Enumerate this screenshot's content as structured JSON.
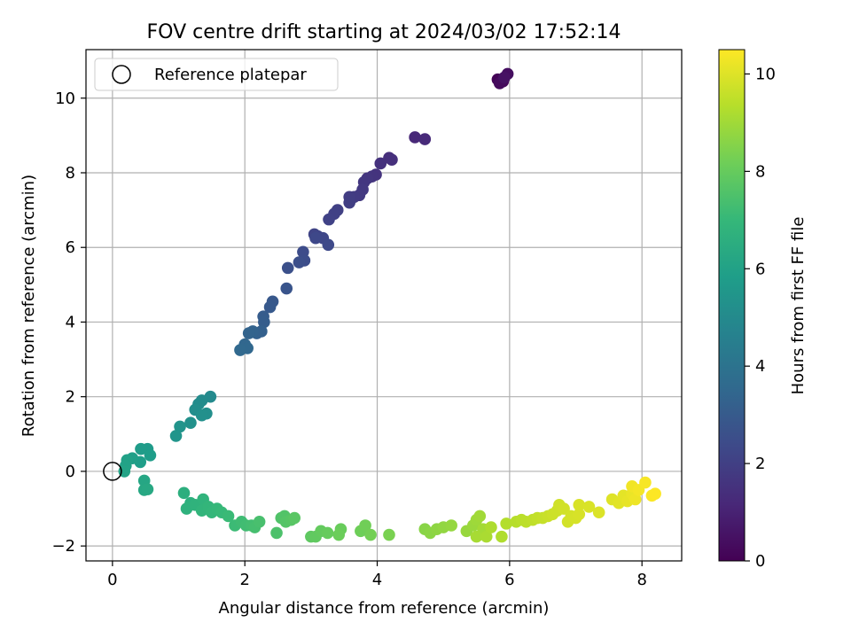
{
  "chart_data": {
    "type": "scatter",
    "title": "FOV centre drift starting at 2024/03/02 17:52:14",
    "xlabel": "Angular distance from reference (arcmin)",
    "ylabel": "Rotation from reference (arcmin)",
    "xlim": [
      -0.4,
      8.6
    ],
    "ylim": [
      -2.4,
      11.3
    ],
    "xticks": [
      0,
      2,
      4,
      6,
      8
    ],
    "yticks": [
      -2,
      0,
      2,
      4,
      6,
      8,
      10
    ],
    "grid": true,
    "legend": {
      "position": "top-left",
      "entries": [
        "Reference platepar"
      ]
    },
    "reference_point": {
      "x": 0,
      "y": 0
    },
    "colorbar": {
      "label": "Hours from first FF file",
      "range": [
        0,
        10.5
      ],
      "ticks": [
        0,
        2,
        4,
        6,
        8,
        10
      ],
      "colormap": [
        "#440154",
        "#482878",
        "#3e4989",
        "#31688e",
        "#26828e",
        "#1f9e89",
        "#35b779",
        "#6ece58",
        "#b5de2b",
        "#fde725"
      ]
    },
    "points": [
      {
        "x": 5.82,
        "y": 10.5,
        "h": 0.1
      },
      {
        "x": 5.9,
        "y": 10.45,
        "h": 0.2
      },
      {
        "x": 5.85,
        "y": 10.4,
        "h": 0.3
      },
      {
        "x": 5.97,
        "y": 10.65,
        "h": 0.4
      },
      {
        "x": 5.92,
        "y": 10.55,
        "h": 0.5
      },
      {
        "x": 4.57,
        "y": 8.95,
        "h": 1.2
      },
      {
        "x": 4.72,
        "y": 8.9,
        "h": 1.25
      },
      {
        "x": 4.18,
        "y": 8.4,
        "h": 1.4
      },
      {
        "x": 4.22,
        "y": 8.35,
        "h": 1.45
      },
      {
        "x": 4.05,
        "y": 8.25,
        "h": 1.5
      },
      {
        "x": 3.98,
        "y": 7.95,
        "h": 1.55
      },
      {
        "x": 3.92,
        "y": 7.9,
        "h": 1.6
      },
      {
        "x": 3.85,
        "y": 7.85,
        "h": 1.65
      },
      {
        "x": 3.8,
        "y": 7.75,
        "h": 1.7
      },
      {
        "x": 3.78,
        "y": 7.55,
        "h": 1.75
      },
      {
        "x": 3.73,
        "y": 7.4,
        "h": 1.8
      },
      {
        "x": 3.65,
        "y": 7.35,
        "h": 1.85
      },
      {
        "x": 3.58,
        "y": 7.35,
        "h": 1.9
      },
      {
        "x": 3.58,
        "y": 7.2,
        "h": 1.95
      },
      {
        "x": 3.4,
        "y": 7.0,
        "h": 2.0
      },
      {
        "x": 3.35,
        "y": 6.9,
        "h": 2.05
      },
      {
        "x": 3.27,
        "y": 6.75,
        "h": 2.1
      },
      {
        "x": 3.05,
        "y": 6.35,
        "h": 2.15
      },
      {
        "x": 3.1,
        "y": 6.3,
        "h": 2.2
      },
      {
        "x": 3.18,
        "y": 6.25,
        "h": 2.25
      },
      {
        "x": 3.07,
        "y": 6.25,
        "h": 2.3
      },
      {
        "x": 3.26,
        "y": 6.07,
        "h": 2.35
      },
      {
        "x": 2.88,
        "y": 5.88,
        "h": 2.45
      },
      {
        "x": 2.9,
        "y": 5.65,
        "h": 2.5
      },
      {
        "x": 2.82,
        "y": 5.6,
        "h": 2.55
      },
      {
        "x": 2.65,
        "y": 5.45,
        "h": 2.6
      },
      {
        "x": 2.63,
        "y": 4.9,
        "h": 2.75
      },
      {
        "x": 2.42,
        "y": 4.55,
        "h": 2.9
      },
      {
        "x": 2.38,
        "y": 4.4,
        "h": 2.95
      },
      {
        "x": 2.28,
        "y": 4.15,
        "h": 3.05
      },
      {
        "x": 2.29,
        "y": 4.0,
        "h": 3.1
      },
      {
        "x": 2.25,
        "y": 3.75,
        "h": 3.2
      },
      {
        "x": 2.18,
        "y": 3.7,
        "h": 3.25
      },
      {
        "x": 2.12,
        "y": 3.75,
        "h": 3.3
      },
      {
        "x": 2.06,
        "y": 3.7,
        "h": 3.35
      },
      {
        "x": 2.0,
        "y": 3.4,
        "h": 3.45
      },
      {
        "x": 2.04,
        "y": 3.3,
        "h": 3.5
      },
      {
        "x": 1.93,
        "y": 3.25,
        "h": 3.55
      },
      {
        "x": 1.48,
        "y": 2.0,
        "h": 5.0
      },
      {
        "x": 1.35,
        "y": 1.9,
        "h": 5.05
      },
      {
        "x": 1.3,
        "y": 1.8,
        "h": 5.1
      },
      {
        "x": 1.25,
        "y": 1.65,
        "h": 5.15
      },
      {
        "x": 1.42,
        "y": 1.55,
        "h": 5.2
      },
      {
        "x": 1.35,
        "y": 1.5,
        "h": 5.25
      },
      {
        "x": 1.18,
        "y": 1.3,
        "h": 5.3
      },
      {
        "x": 1.02,
        "y": 1.2,
        "h": 5.4
      },
      {
        "x": 0.96,
        "y": 0.95,
        "h": 5.45
      },
      {
        "x": 0.53,
        "y": 0.6,
        "h": 5.7
      },
      {
        "x": 0.43,
        "y": 0.6,
        "h": 5.75
      },
      {
        "x": 0.57,
        "y": 0.43,
        "h": 5.8
      },
      {
        "x": 0.42,
        "y": 0.25,
        "h": 5.85
      },
      {
        "x": 0.3,
        "y": 0.35,
        "h": 5.9
      },
      {
        "x": 0.22,
        "y": 0.3,
        "h": 5.95
      },
      {
        "x": 0.2,
        "y": 0.15,
        "h": 6.0
      },
      {
        "x": 0.18,
        "y": 0.0,
        "h": 6.05
      },
      {
        "x": 0.48,
        "y": -0.25,
        "h": 6.2
      },
      {
        "x": 0.48,
        "y": -0.5,
        "h": 6.25
      },
      {
        "x": 0.53,
        "y": -0.48,
        "h": 6.3
      },
      {
        "x": 1.08,
        "y": -0.58,
        "h": 6.6
      },
      {
        "x": 1.18,
        "y": -0.85,
        "h": 6.65
      },
      {
        "x": 1.12,
        "y": -1.0,
        "h": 6.7
      },
      {
        "x": 1.25,
        "y": -0.9,
        "h": 6.75
      },
      {
        "x": 1.37,
        "y": -0.75,
        "h": 6.8
      },
      {
        "x": 1.35,
        "y": -1.05,
        "h": 6.85
      },
      {
        "x": 1.45,
        "y": -0.95,
        "h": 6.9
      },
      {
        "x": 1.5,
        "y": -1.1,
        "h": 6.95
      },
      {
        "x": 1.58,
        "y": -1.0,
        "h": 7.0
      },
      {
        "x": 1.65,
        "y": -1.1,
        "h": 7.05
      },
      {
        "x": 1.75,
        "y": -1.2,
        "h": 7.1
      },
      {
        "x": 1.85,
        "y": -1.45,
        "h": 7.15
      },
      {
        "x": 1.95,
        "y": -1.35,
        "h": 7.2
      },
      {
        "x": 2.02,
        "y": -1.45,
        "h": 7.25
      },
      {
        "x": 2.1,
        "y": -1.45,
        "h": 7.3
      },
      {
        "x": 2.15,
        "y": -1.5,
        "h": 7.35
      },
      {
        "x": 2.22,
        "y": -1.35,
        "h": 7.4
      },
      {
        "x": 2.48,
        "y": -1.65,
        "h": 7.5
      },
      {
        "x": 2.55,
        "y": -1.25,
        "h": 7.55
      },
      {
        "x": 2.6,
        "y": -1.2,
        "h": 7.6
      },
      {
        "x": 2.62,
        "y": -1.35,
        "h": 7.65
      },
      {
        "x": 2.7,
        "y": -1.3,
        "h": 7.7
      },
      {
        "x": 2.75,
        "y": -1.25,
        "h": 7.75
      },
      {
        "x": 3.0,
        "y": -1.75,
        "h": 7.85
      },
      {
        "x": 3.07,
        "y": -1.75,
        "h": 7.9
      },
      {
        "x": 3.15,
        "y": -1.6,
        "h": 7.95
      },
      {
        "x": 3.25,
        "y": -1.65,
        "h": 8.0
      },
      {
        "x": 3.45,
        "y": -1.55,
        "h": 8.05
      },
      {
        "x": 3.42,
        "y": -1.7,
        "h": 8.1
      },
      {
        "x": 3.75,
        "y": -1.6,
        "h": 8.15
      },
      {
        "x": 3.82,
        "y": -1.45,
        "h": 8.2
      },
      {
        "x": 3.9,
        "y": -1.7,
        "h": 8.25
      },
      {
        "x": 4.18,
        "y": -1.7,
        "h": 8.35
      },
      {
        "x": 4.72,
        "y": -1.55,
        "h": 8.6
      },
      {
        "x": 4.8,
        "y": -1.65,
        "h": 8.65
      },
      {
        "x": 4.9,
        "y": -1.55,
        "h": 8.7
      },
      {
        "x": 5.0,
        "y": -1.5,
        "h": 8.75
      },
      {
        "x": 5.12,
        "y": -1.45,
        "h": 8.8
      },
      {
        "x": 5.35,
        "y": -1.6,
        "h": 8.85
      },
      {
        "x": 5.45,
        "y": -1.45,
        "h": 8.9
      },
      {
        "x": 5.5,
        "y": -1.3,
        "h": 8.95
      },
      {
        "x": 5.55,
        "y": -1.2,
        "h": 9.0
      },
      {
        "x": 5.6,
        "y": -1.55,
        "h": 9.05
      },
      {
        "x": 5.5,
        "y": -1.75,
        "h": 9.1
      },
      {
        "x": 5.65,
        "y": -1.75,
        "h": 9.15
      },
      {
        "x": 5.72,
        "y": -1.5,
        "h": 9.2
      },
      {
        "x": 5.88,
        "y": -1.75,
        "h": 9.25
      },
      {
        "x": 5.95,
        "y": -1.4,
        "h": 9.3
      },
      {
        "x": 6.1,
        "y": -1.35,
        "h": 9.35
      },
      {
        "x": 6.18,
        "y": -1.3,
        "h": 9.4
      },
      {
        "x": 6.25,
        "y": -1.35,
        "h": 9.45
      },
      {
        "x": 6.35,
        "y": -1.3,
        "h": 9.5
      },
      {
        "x": 6.42,
        "y": -1.25,
        "h": 9.55
      },
      {
        "x": 6.5,
        "y": -1.25,
        "h": 9.6
      },
      {
        "x": 6.58,
        "y": -1.2,
        "h": 9.65
      },
      {
        "x": 6.65,
        "y": -1.15,
        "h": 9.7
      },
      {
        "x": 6.72,
        "y": -1.05,
        "h": 9.72
      },
      {
        "x": 6.75,
        "y": -0.9,
        "h": 9.75
      },
      {
        "x": 6.82,
        "y": -1.0,
        "h": 9.78
      },
      {
        "x": 6.88,
        "y": -1.35,
        "h": 9.8
      },
      {
        "x": 6.93,
        "y": -1.2,
        "h": 9.82
      },
      {
        "x": 7.0,
        "y": -1.25,
        "h": 9.85
      },
      {
        "x": 7.05,
        "y": -1.15,
        "h": 9.88
      },
      {
        "x": 7.05,
        "y": -0.9,
        "h": 9.9
      },
      {
        "x": 7.2,
        "y": -0.95,
        "h": 9.92
      },
      {
        "x": 7.35,
        "y": -1.1,
        "h": 9.95
      },
      {
        "x": 7.55,
        "y": -0.75,
        "h": 10.0
      },
      {
        "x": 7.65,
        "y": -0.85,
        "h": 10.05
      },
      {
        "x": 7.72,
        "y": -0.65,
        "h": 10.1
      },
      {
        "x": 7.78,
        "y": -0.8,
        "h": 10.15
      },
      {
        "x": 7.85,
        "y": -0.6,
        "h": 10.2
      },
      {
        "x": 7.9,
        "y": -0.75,
        "h": 10.25
      },
      {
        "x": 7.85,
        "y": -0.4,
        "h": 10.3
      },
      {
        "x": 7.95,
        "y": -0.5,
        "h": 10.35
      },
      {
        "x": 8.05,
        "y": -0.3,
        "h": 10.4
      },
      {
        "x": 8.15,
        "y": -0.65,
        "h": 10.45
      },
      {
        "x": 8.2,
        "y": -0.6,
        "h": 10.48
      }
    ]
  }
}
